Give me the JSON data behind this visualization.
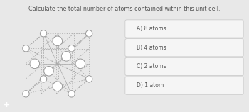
{
  "title": "Calculate the total number of atoms contained within this unit cell.",
  "title_fontsize": 5.8,
  "title_color": "#555555",
  "bg_color": "#e8e8e8",
  "panel_bg": "#ffffff",
  "choices": [
    "A) 8 atoms",
    "B) 4 atoms",
    "C) 2 atoms",
    "D) 1 atom"
  ],
  "choice_fontsize": 5.5,
  "choice_color": "#555555",
  "plus_color": "#4499bb",
  "atom_edge_color": "#999999",
  "atom_face_color": "#ffffff",
  "line_color": "#aaaaaa",
  "corner_r": 0.038,
  "face_r": 0.055
}
